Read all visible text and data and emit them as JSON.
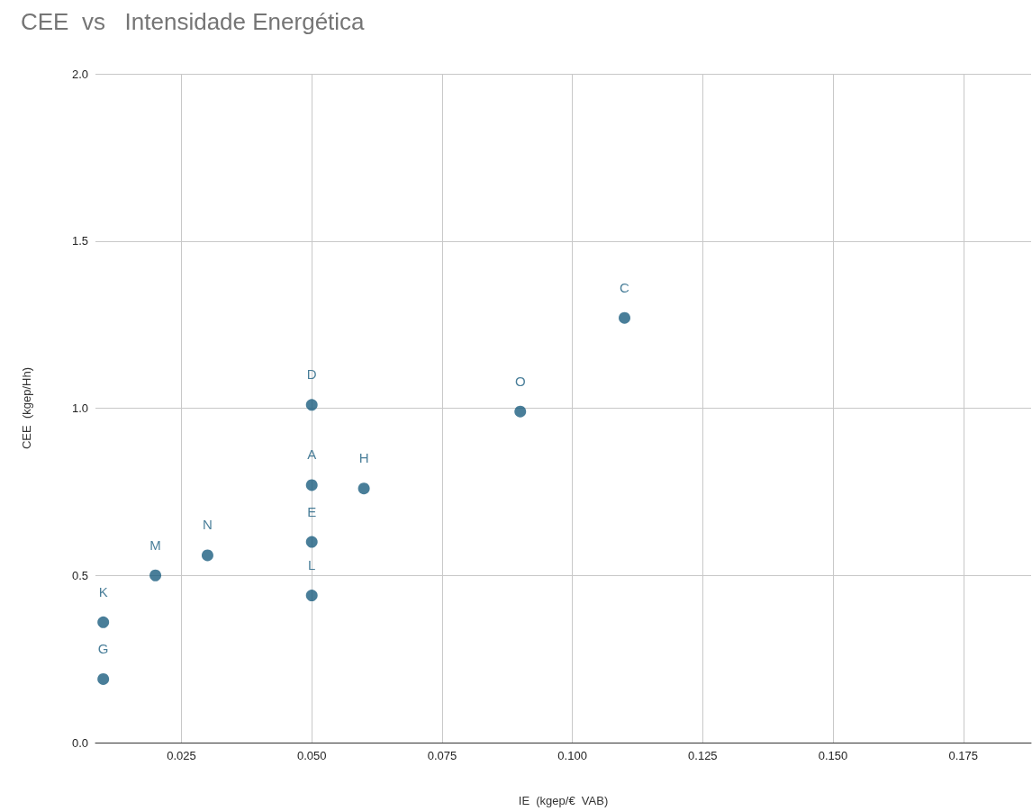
{
  "chart_data": {
    "type": "scatter",
    "title": "CEE  vs   Intensidade Energética",
    "xlabel": "IE  (kgep/€  VAB)",
    "ylabel": "CEE  (kgep/Hh)",
    "x": [
      0.01,
      0.01,
      0.02,
      0.03,
      0.05,
      0.05,
      0.05,
      0.05,
      0.06,
      0.09,
      0.11
    ],
    "values": [
      0.36,
      0.19,
      0.5,
      0.56,
      1.01,
      0.77,
      0.6,
      0.44,
      0.76,
      0.99,
      1.27
    ],
    "value_labels": [
      "K",
      "G",
      "M",
      "N",
      "D",
      "A",
      "E",
      "L",
      "H",
      "O",
      "C"
    ],
    "color": "#1b5e80",
    "marker": "circle",
    "grid": true,
    "xlim": [
      0.0085,
      0.188
    ],
    "xticks": [
      0.025,
      {
        "value": 0.05,
        "label": "0.050"
      },
      0.075,
      {
        "value": 0.1,
        "label": "0.100"
      },
      0.125,
      {
        "value": 0.15,
        "label": "0.150"
      },
      0.175
    ],
    "ylim": [
      0,
      2
    ],
    "yticks": [
      {
        "value": 0,
        "label": "0.0"
      },
      0.5,
      {
        "value": 1,
        "label": "1.0"
      },
      1.5,
      {
        "value": 2,
        "label": "2.0"
      }
    ]
  }
}
